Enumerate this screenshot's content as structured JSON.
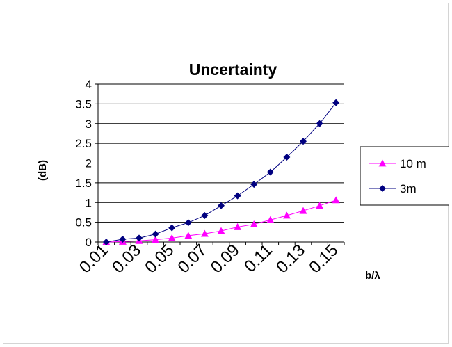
{
  "chart_data": {
    "type": "line",
    "title": "Uncertainty",
    "ylabel": "(dB)",
    "xlabel": "b/λ",
    "ylim": [
      0,
      4
    ],
    "yticks": [
      "0",
      "0.5",
      "1",
      "1.5",
      "2",
      "2.5",
      "3",
      "3.5",
      "4"
    ],
    "categories": [
      "0.01",
      "0.02",
      "0.03",
      "0.04",
      "0.05",
      "0.06",
      "0.07",
      "0.08",
      "0.09",
      "0.1",
      "0.11",
      "0.12",
      "0.13",
      "0.14",
      "0.15"
    ],
    "xtick_labels": [
      "0.01",
      "0.03",
      "0.05",
      "0.07",
      "0.09",
      "0.11",
      "0.13",
      "0.15"
    ],
    "grid": true,
    "legend_position": "right",
    "series": [
      {
        "name": "10 m",
        "color": "#ff00ff",
        "marker": "triangle",
        "values": [
          0.0,
          0.01,
          0.03,
          0.06,
          0.1,
          0.16,
          0.21,
          0.28,
          0.38,
          0.45,
          0.56,
          0.67,
          0.79,
          0.92,
          1.06
        ]
      },
      {
        "name": "3m",
        "color": "#000080",
        "marker": "diamond",
        "values": [
          0.0,
          0.07,
          0.1,
          0.2,
          0.36,
          0.49,
          0.67,
          0.92,
          1.17,
          1.46,
          1.77,
          2.15,
          2.55,
          3.0,
          3.53
        ]
      }
    ]
  }
}
